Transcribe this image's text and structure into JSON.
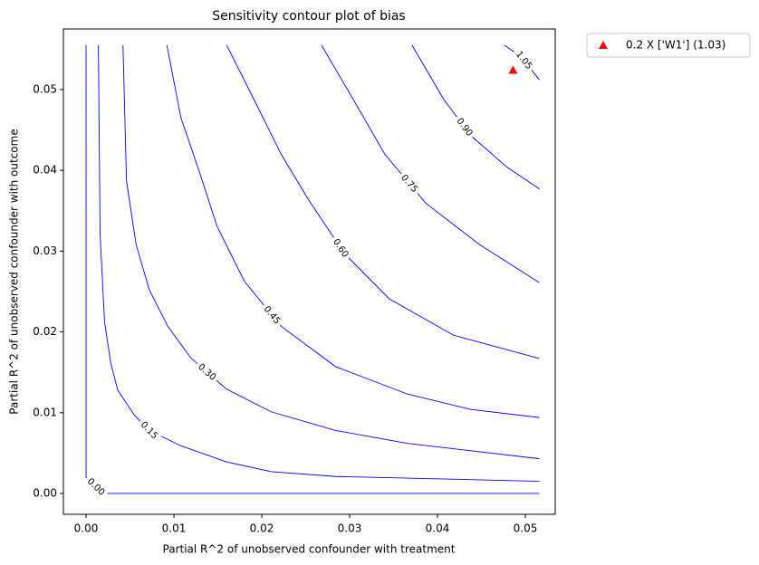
{
  "chart_data": {
    "type": "contour",
    "title": "Sensitivity contour plot of bias",
    "x_label": "Partial R^2 of unobserved confounder with treatment",
    "y_label": "Partial R^2 of unobserved confounder with outcome",
    "xlim": [
      -0.00258,
      0.0534
    ],
    "ylim": [
      -0.00258,
      0.0575
    ],
    "xticks": [
      {
        "value": 0,
        "label": "0.00"
      },
      {
        "value": 0.01,
        "label": "0.01"
      },
      {
        "value": 0.02,
        "label": "0.02"
      },
      {
        "value": 0.03,
        "label": "0.03"
      },
      {
        "value": 0.04,
        "label": "0.04"
      },
      {
        "value": 0.05,
        "label": "0.05"
      }
    ],
    "yticks": [
      {
        "value": 0,
        "label": "0.00"
      },
      {
        "value": 0.01,
        "label": "0.01"
      },
      {
        "value": 0.02,
        "label": "0.02"
      },
      {
        "value": 0.03,
        "label": "0.03"
      },
      {
        "value": 0.04,
        "label": "0.04"
      },
      {
        "value": 0.05,
        "label": "0.05"
      }
    ],
    "contour_color": "#0000ff",
    "contours": [
      {
        "level": {
          "value": 0,
          "label": "0.00"
        },
        "x": [
          0,
          0,
          0.0019,
          0.0516
        ],
        "y": [
          0.0555,
          0.002,
          0,
          0
        ]
      },
      {
        "level": {
          "value": 0.15,
          "label": "0.15"
        },
        "x": [
          0.0014,
          0.0016,
          0.0021,
          0.0028,
          0.0036,
          0.0055,
          0.0072,
          0.0108,
          0.016,
          0.0211,
          0.0284,
          0.0366,
          0.0516
        ],
        "y": [
          0.0555,
          0.032,
          0.0213,
          0.0162,
          0.0128,
          0.0097,
          0.0078,
          0.0059,
          0.0039,
          0.0027,
          0.0021,
          0.0019,
          0.0015
        ]
      },
      {
        "level": {
          "value": 0.3,
          "label": "0.30"
        },
        "x": [
          0.0042,
          0.0046,
          0.0057,
          0.0072,
          0.0093,
          0.0119,
          0.016,
          0.0211,
          0.0284,
          0.0366,
          0.0516
        ],
        "y": [
          0.0555,
          0.0387,
          0.0308,
          0.0252,
          0.0207,
          0.0168,
          0.0129,
          0.0101,
          0.0078,
          0.0062,
          0.0043
        ]
      },
      {
        "level": {
          "value": 0.45,
          "label": "0.45"
        },
        "x": [
          0.0092,
          0.0108,
          0.0129,
          0.0149,
          0.018,
          0.0222,
          0.0284,
          0.0366,
          0.0438,
          0.0516
        ],
        "y": [
          0.0555,
          0.0465,
          0.0398,
          0.0331,
          0.0263,
          0.0207,
          0.0157,
          0.0123,
          0.0104,
          0.0094
        ]
      },
      {
        "level": {
          "value": 0.6,
          "label": "0.60"
        },
        "x": [
          0.016,
          0.0191,
          0.0222,
          0.0253,
          0.0294,
          0.0345,
          0.0418,
          0.0516
        ],
        "y": [
          0.0555,
          0.0488,
          0.042,
          0.0364,
          0.0297,
          0.0241,
          0.0196,
          0.0167
        ]
      },
      {
        "level": {
          "value": 0.75,
          "label": "0.75"
        },
        "x": [
          0.0268,
          0.0304,
          0.034,
          0.0387,
          0.0448,
          0.0516
        ],
        "y": [
          0.0555,
          0.0488,
          0.042,
          0.0359,
          0.0308,
          0.0261
        ]
      },
      {
        "level": {
          "value": 0.9,
          "label": "0.90"
        },
        "x": [
          0.0371,
          0.0407,
          0.0438,
          0.0479,
          0.0516
        ],
        "y": [
          0.0555,
          0.0488,
          0.0443,
          0.0404,
          0.0377
        ]
      },
      {
        "level": {
          "value": 1.05,
          "label": "1.05"
        },
        "x": [
          0.0476,
          0.0495,
          0.0516
        ],
        "y": [
          0.0555,
          0.0541,
          0.0512
        ]
      }
    ],
    "series": [
      {
        "name": "0.2 X ['W1'] (1.03)",
        "color": "#ff0000",
        "marker": "triangle",
        "x": [
          0.0486
        ],
        "y": [
          0.0524
        ]
      }
    ],
    "legend": "outside upper right"
  }
}
